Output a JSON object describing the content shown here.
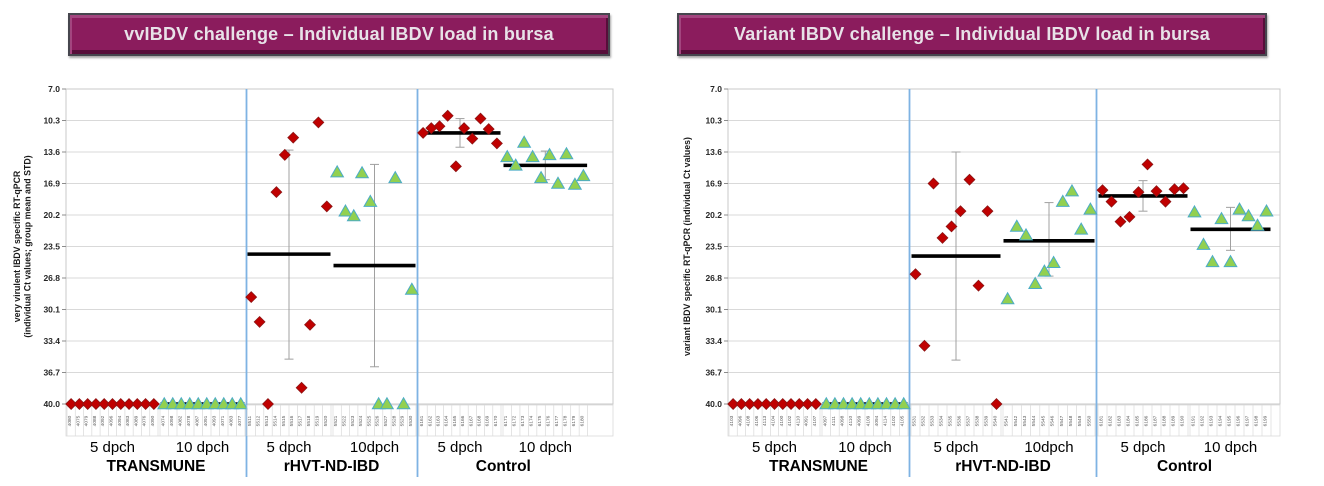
{
  "colors": {
    "banner_bg": "#8b1c5d",
    "banner_text": "#e8e2e8",
    "diamond_fill": "#c00000",
    "diamond_stroke": "#8c1515",
    "triangle_fill": "#92d050",
    "triangle_stroke": "#4bacc6",
    "mean_line": "#000000",
    "error_bar": "#a0a0a0",
    "separator": "#7eb3e3",
    "gridline": "#d9d9d9",
    "axis_text": "#262626",
    "id_label_text": "#595959"
  },
  "chart_data": [
    {
      "type": "scatter",
      "title": "vvIBDV challenge – Individual IBDV load in bursa",
      "y_axis": {
        "title_lines": [
          "very virulent IBDV specific RT-qPCR",
          "(individual Ct values; group mean and STD)"
        ],
        "ticks": [
          7.0,
          10.3,
          13.6,
          16.9,
          20.2,
          23.5,
          26.8,
          30.1,
          33.4,
          36.7,
          40.0
        ],
        "min": 7.0,
        "max": 40.0,
        "reversed": true,
        "grid": true
      },
      "groups": [
        {
          "name": "TRANSMUNE",
          "subgroups": [
            {
              "label": "5 dpch",
              "marker": "diamond",
              "mean": 40.0,
              "err_lo": null,
              "err_hi": null,
              "points": [
                [
                  "4080",
                  40
                ],
                [
                  "4075",
                  40
                ],
                [
                  "4079",
                  40
                ],
                [
                  "4088",
                  40
                ],
                [
                  "4092",
                  40
                ],
                [
                  "4096",
                  40
                ],
                [
                  "4094",
                  40
                ],
                [
                  "4083",
                  40
                ],
                [
                  "4089",
                  40
                ],
                [
                  "4076",
                  40
                ],
                [
                  "4090",
                  40
                ]
              ]
            },
            {
              "label": "10 dpch",
              "marker": "triangle",
              "mean": 40.0,
              "err_lo": null,
              "err_hi": null,
              "points": [
                [
                  "4074",
                  40
                ],
                [
                  "4098",
                  40
                ],
                [
                  "4082",
                  40
                ],
                [
                  "4078",
                  40
                ],
                [
                  "4087",
                  40
                ],
                [
                  "4091",
                  40
                ],
                [
                  "4093",
                  40
                ],
                [
                  "4071",
                  40
                ],
                [
                  "4083",
                  40
                ],
                [
                  "4077",
                  40
                ]
              ]
            }
          ]
        },
        {
          "name": "rHVT-ND-IBD",
          "subgroups": [
            {
              "label": "5 dpch",
              "marker": "diamond",
              "mean": 24.3,
              "err_lo": 13.4,
              "err_hi": 35.3,
              "points": [
                [
                  "5511",
                  28.8
                ],
                [
                  "5512",
                  31.4
                ],
                [
                  "5513",
                  40
                ],
                [
                  "5514",
                  17.8
                ],
                [
                  "5515",
                  13.9
                ],
                [
                  "5516",
                  12.1
                ],
                [
                  "5517",
                  38.3
                ],
                [
                  "5518",
                  31.7
                ],
                [
                  "5519",
                  10.5
                ],
                [
                  "5520",
                  19.3
                ]
              ]
            },
            {
              "label": "10dpch",
              "marker": "triangle",
              "mean": 25.5,
              "err_lo": 14.9,
              "err_hi": 36.1,
              "points": [
                [
                  "5521",
                  15.7
                ],
                [
                  "5522",
                  19.8
                ],
                [
                  "5523",
                  20.3
                ],
                [
                  "5524",
                  15.8
                ],
                [
                  "5525",
                  18.8
                ],
                [
                  "5526",
                  40
                ],
                [
                  "5527",
                  40
                ],
                [
                  "5528",
                  16.3
                ],
                [
                  "5529",
                  40
                ],
                [
                  "5530",
                  28.0
                ]
              ]
            }
          ]
        },
        {
          "name": "Control",
          "subgroups": [
            {
              "label": "5 dpch",
              "marker": "diamond",
              "mean": 11.6,
              "err_lo": 10.1,
              "err_hi": 13.1,
              "points": [
                [
                  "6161",
                  11.6
                ],
                [
                  "6162",
                  11.1
                ],
                [
                  "6163",
                  10.9
                ],
                [
                  "6164",
                  9.8
                ],
                [
                  "6165",
                  15.1
                ],
                [
                  "6166",
                  11.1
                ],
                [
                  "6167",
                  12.2
                ],
                [
                  "6168",
                  10.1
                ],
                [
                  "6169",
                  11.2
                ],
                [
                  "6170",
                  12.7
                ]
              ]
            },
            {
              "label": "10 dpch",
              "marker": "triangle",
              "mean": 15.0,
              "err_lo": 13.5,
              "err_hi": 16.5,
              "points": [
                [
                  "6171",
                  14.1
                ],
                [
                  "6172",
                  15.0
                ],
                [
                  "6173",
                  12.6
                ],
                [
                  "6174",
                  14.1
                ],
                [
                  "6175",
                  16.3
                ],
                [
                  "6176",
                  13.9
                ],
                [
                  "6177",
                  16.9
                ],
                [
                  "6178",
                  13.8
                ],
                [
                  "6179",
                  17.0
                ],
                [
                  "6180",
                  16.1
                ]
              ]
            }
          ]
        }
      ]
    },
    {
      "type": "scatter",
      "title": "Variant IBDV challenge – Individual IBDV load in bursa",
      "y_axis": {
        "title_lines": [
          "variant IBDV specific RT-qPCR (individual Ct values)"
        ],
        "ticks": [
          7.0,
          10.3,
          13.6,
          16.9,
          20.2,
          23.5,
          26.8,
          30.1,
          33.4,
          36.7,
          40.0
        ],
        "min": 7.0,
        "max": 40.0,
        "reversed": true,
        "grid": true
      },
      "groups": [
        {
          "name": "TRANSMUNE",
          "subgroups": [
            {
              "label": "5 dpch",
              "marker": "diamond",
              "mean": 40.0,
              "err_lo": null,
              "err_hi": null,
              "points": [
                [
                  "4103",
                  40
                ],
                [
                  "4096",
                  40
                ],
                [
                  "4108",
                  40
                ],
                [
                  "4106",
                  40
                ],
                [
                  "4113",
                  40
                ],
                [
                  "4104",
                  40
                ],
                [
                  "4100",
                  40
                ],
                [
                  "4102",
                  40
                ],
                [
                  "4110",
                  40
                ],
                [
                  "4091",
                  40
                ],
                [
                  "4107",
                  40
                ]
              ]
            },
            {
              "label": "10 dpch",
              "marker": "triangle",
              "mean": 40.0,
              "err_lo": null,
              "err_hi": null,
              "points": [
                [
                  "4097",
                  40
                ],
                [
                  "4111",
                  40
                ],
                [
                  "4098",
                  40
                ],
                [
                  "4110",
                  40
                ],
                [
                  "4099",
                  40
                ],
                [
                  "4109",
                  40
                ],
                [
                  "4094",
                  40
                ],
                [
                  "4114",
                  40
                ],
                [
                  "4102",
                  40
                ],
                [
                  "4105",
                  40
                ]
              ]
            }
          ]
        },
        {
          "name": "rHVT-ND-IBD",
          "subgroups": [
            {
              "label": "5 dpch",
              "marker": "diamond",
              "mean": 24.5,
              "err_lo": 13.6,
              "err_hi": 35.4,
              "points": [
                [
                  "5531",
                  26.4
                ],
                [
                  "5532",
                  33.9
                ],
                [
                  "5533",
                  16.9
                ],
                [
                  "5534",
                  22.6
                ],
                [
                  "5535",
                  21.4
                ],
                [
                  "5536",
                  19.8
                ],
                [
                  "5537",
                  16.5
                ],
                [
                  "5538",
                  27.6
                ],
                [
                  "5539",
                  19.8
                ],
                [
                  "5540",
                  40
                ]
              ]
            },
            {
              "label": "10dpch",
              "marker": "triangle",
              "mean": 22.9,
              "err_lo": 18.9,
              "err_hi": 26.6,
              "points": [
                [
                  "5541",
                  29.0
                ],
                [
                  "5542",
                  21.4
                ],
                [
                  "5543",
                  22.3
                ],
                [
                  "5544",
                  27.4
                ],
                [
                  "5545",
                  26.1
                ],
                [
                  "5546",
                  25.2
                ],
                [
                  "5547",
                  18.8
                ],
                [
                  "5548",
                  17.7
                ],
                [
                  "5549",
                  21.7
                ],
                [
                  "5550",
                  19.6
                ]
              ]
            }
          ]
        },
        {
          "name": "Control",
          "subgroups": [
            {
              "label": "5 dpch",
              "marker": "diamond",
              "mean": 18.2,
              "err_lo": 16.6,
              "err_hi": 19.8,
              "points": [
                [
                  "6181",
                  17.6
                ],
                [
                  "6182",
                  18.8
                ],
                [
                  "6183",
                  20.9
                ],
                [
                  "6184",
                  20.4
                ],
                [
                  "6185",
                  17.8
                ],
                [
                  "6186",
                  14.9
                ],
                [
                  "6187",
                  17.7
                ],
                [
                  "6188",
                  18.8
                ],
                [
                  "6189",
                  17.5
                ],
                [
                  "6190",
                  17.4
                ]
              ]
            },
            {
              "label": "10 dpch",
              "marker": "triangle",
              "mean": 21.7,
              "err_lo": 19.4,
              "err_hi": 23.9,
              "points": [
                [
                  "6191",
                  19.9
                ],
                [
                  "6192",
                  23.3
                ],
                [
                  "6193",
                  25.1
                ],
                [
                  "6194",
                  20.6
                ],
                [
                  "6195",
                  25.1
                ],
                [
                  "6196",
                  19.6
                ],
                [
                  "6197",
                  20.3
                ],
                [
                  "6198",
                  21.3
                ],
                [
                  "6199",
                  19.8
                ]
              ]
            }
          ]
        }
      ]
    }
  ]
}
